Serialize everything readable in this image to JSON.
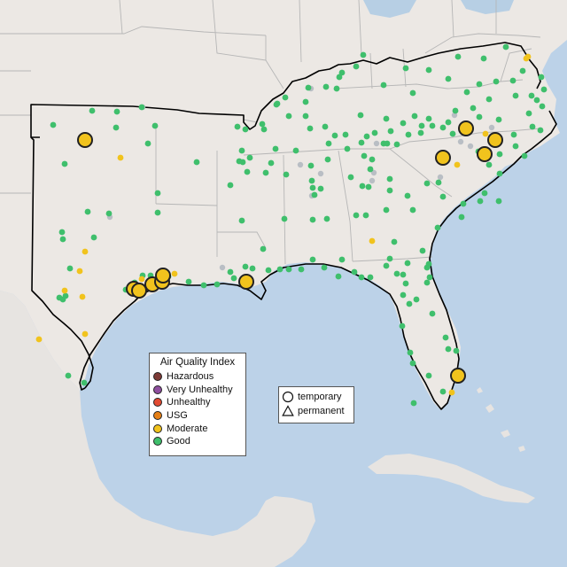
{
  "map": {
    "colors": {
      "ocean": "#bcd2e8",
      "land": "#ece8e4",
      "mexico": "#e7e4e1",
      "lake": "#b7cfe4",
      "state_border": "#b6b6b6",
      "region_border": "#000000",
      "site_border": "#222222"
    }
  },
  "aqi_legend": {
    "title": "Air Quality Index",
    "items": [
      {
        "label": "Hazardous",
        "color": "#7e3b37"
      },
      {
        "label": "Very Unhealthy",
        "color": "#8f4f9f"
      },
      {
        "label": "Unhealthy",
        "color": "#e24b32"
      },
      {
        "label": "USG",
        "color": "#e68016"
      },
      {
        "label": "Moderate",
        "color": "#f1c31d"
      },
      {
        "label": "Good",
        "color": "#3fbf6c"
      }
    ]
  },
  "shape_legend": {
    "items": [
      {
        "label": "temporary",
        "shape": "circle"
      },
      {
        "label": "permanent",
        "shape": "triangle"
      }
    ]
  },
  "unreported_color": "#b9bec4"
}
